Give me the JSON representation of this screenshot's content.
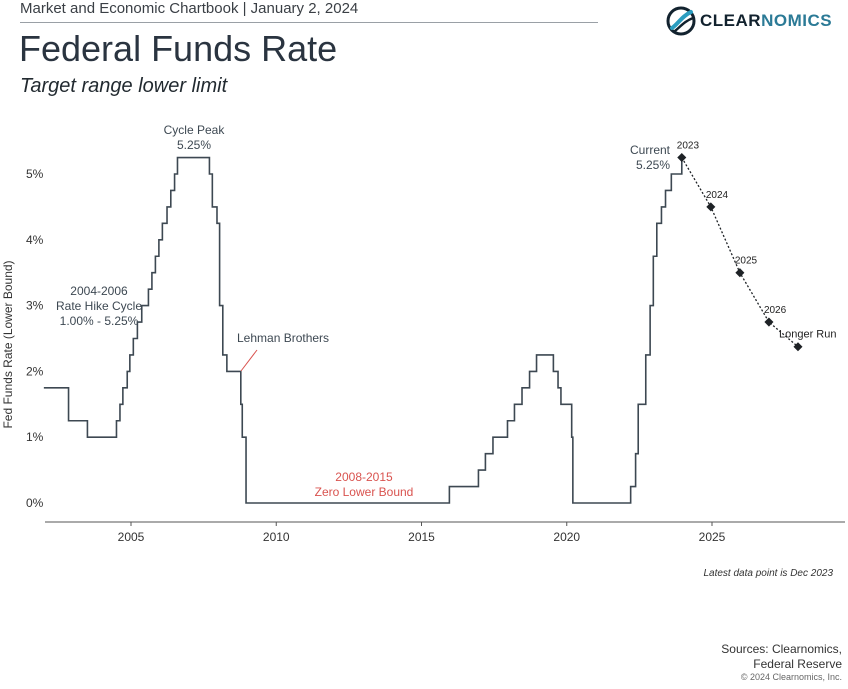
{
  "header": {
    "chartbook": "Market and Economic Chartbook | January 2, 2024",
    "logo_text_strong": "CLEAR",
    "logo_text_light": "NOMICS",
    "logo_icon": "clearnomics-swoosh-icon"
  },
  "title": "Federal Funds Rate",
  "subtitle": "Target range lower limit",
  "chart_data": {
    "type": "line",
    "ylabel": "Fed Funds Rate (Lower Bound)",
    "xlabel": "",
    "xlim": [
      2002.0,
      2030.6
    ],
    "ylim": [
      -0.3,
      5.5
    ],
    "yticks": [
      0,
      1,
      2,
      3,
      4,
      5
    ],
    "ytick_labels": [
      "0%",
      "1%",
      "2%",
      "3%",
      "4%",
      "5%"
    ],
    "xticks": [
      2005,
      2010,
      2015,
      2020,
      2025
    ],
    "xtick_labels": [
      "2005",
      "2010",
      "2015",
      "2020",
      "2025"
    ],
    "grid": false,
    "legend": "none",
    "colors": {
      "line": "#3d4852",
      "projection": "#1e2226",
      "annotation": "#3d4852",
      "highlight": "#d9534f"
    },
    "series": [
      {
        "role": "historical",
        "style": "step",
        "points": [
          [
            2002.0,
            1.75
          ],
          [
            2002.85,
            1.25
          ],
          [
            2003.5,
            1.0
          ],
          [
            2004.5,
            1.25
          ],
          [
            2004.62,
            1.5
          ],
          [
            2004.72,
            1.75
          ],
          [
            2004.87,
            2.0
          ],
          [
            2004.96,
            2.25
          ],
          [
            2005.08,
            2.5
          ],
          [
            2005.22,
            2.75
          ],
          [
            2005.37,
            3.0
          ],
          [
            2005.6,
            3.25
          ],
          [
            2005.72,
            3.5
          ],
          [
            2005.84,
            3.75
          ],
          [
            2005.96,
            4.0
          ],
          [
            2006.08,
            4.25
          ],
          [
            2006.24,
            4.5
          ],
          [
            2006.37,
            4.75
          ],
          [
            2006.5,
            5.0
          ],
          [
            2006.6,
            5.25
          ],
          [
            2007.7,
            5.0
          ],
          [
            2007.8,
            4.5
          ],
          [
            2007.96,
            4.25
          ],
          [
            2008.05,
            3.0
          ],
          [
            2008.16,
            2.25
          ],
          [
            2008.3,
            2.0
          ],
          [
            2008.78,
            1.5
          ],
          [
            2008.83,
            1.0
          ],
          [
            2008.96,
            0.0
          ],
          [
            2015.96,
            0.25
          ],
          [
            2016.96,
            0.5
          ],
          [
            2017.2,
            0.75
          ],
          [
            2017.46,
            1.0
          ],
          [
            2017.96,
            1.25
          ],
          [
            2018.2,
            1.5
          ],
          [
            2018.46,
            1.75
          ],
          [
            2018.72,
            2.0
          ],
          [
            2018.96,
            2.25
          ],
          [
            2019.54,
            2.0
          ],
          [
            2019.7,
            1.75
          ],
          [
            2019.8,
            1.5
          ],
          [
            2020.17,
            1.0
          ],
          [
            2020.21,
            0.0
          ],
          [
            2022.2,
            0.25
          ],
          [
            2022.37,
            0.75
          ],
          [
            2022.46,
            1.5
          ],
          [
            2022.72,
            2.25
          ],
          [
            2022.87,
            3.0
          ],
          [
            2022.98,
            3.75
          ],
          [
            2023.1,
            4.25
          ],
          [
            2023.26,
            4.5
          ],
          [
            2023.4,
            4.75
          ],
          [
            2023.6,
            5.0
          ],
          [
            2023.96,
            5.25
          ]
        ]
      },
      {
        "role": "projection",
        "style": "dotted",
        "points": [
          [
            2023.96,
            5.25
          ],
          [
            2024.96,
            4.5
          ],
          [
            2025.96,
            3.5
          ],
          [
            2026.96,
            2.75
          ],
          [
            2027.96,
            2.375
          ]
        ],
        "labels": [
          "2023",
          "2024",
          "2025",
          "2026",
          "Longer Run"
        ]
      }
    ],
    "annotations": [
      {
        "id": "cycle-peak",
        "lines": [
          "Cycle Peak",
          "5.25%"
        ],
        "x": 2007.2,
        "y": 5.25,
        "align": "center"
      },
      {
        "id": "hike-cycle",
        "lines": [
          "2004-2006",
          "Rate Hike Cycle",
          "1.00% - 5.25%"
        ],
        "x": 2004.0,
        "y": 3.25,
        "align": "center"
      },
      {
        "id": "lehman",
        "lines": [
          "Lehman Brothers"
        ],
        "x": 2008.3,
        "y": 2.0,
        "align": "left"
      },
      {
        "id": "zero-bound",
        "lines": [
          "2008-2015",
          "Zero Lower Bound"
        ],
        "x": 2012.5,
        "y": 0.25,
        "align": "center"
      },
      {
        "id": "current",
        "lines": [
          "Current",
          "5.25%"
        ],
        "x": 2023.2,
        "y": 5.25,
        "align": "right"
      }
    ]
  },
  "footnote": "Latest data point is Dec 2023",
  "sources_line1": "Sources: Clearnomics,",
  "sources_line2": "Federal Reserve",
  "copyright": "© 2024 Clearnomics, Inc."
}
